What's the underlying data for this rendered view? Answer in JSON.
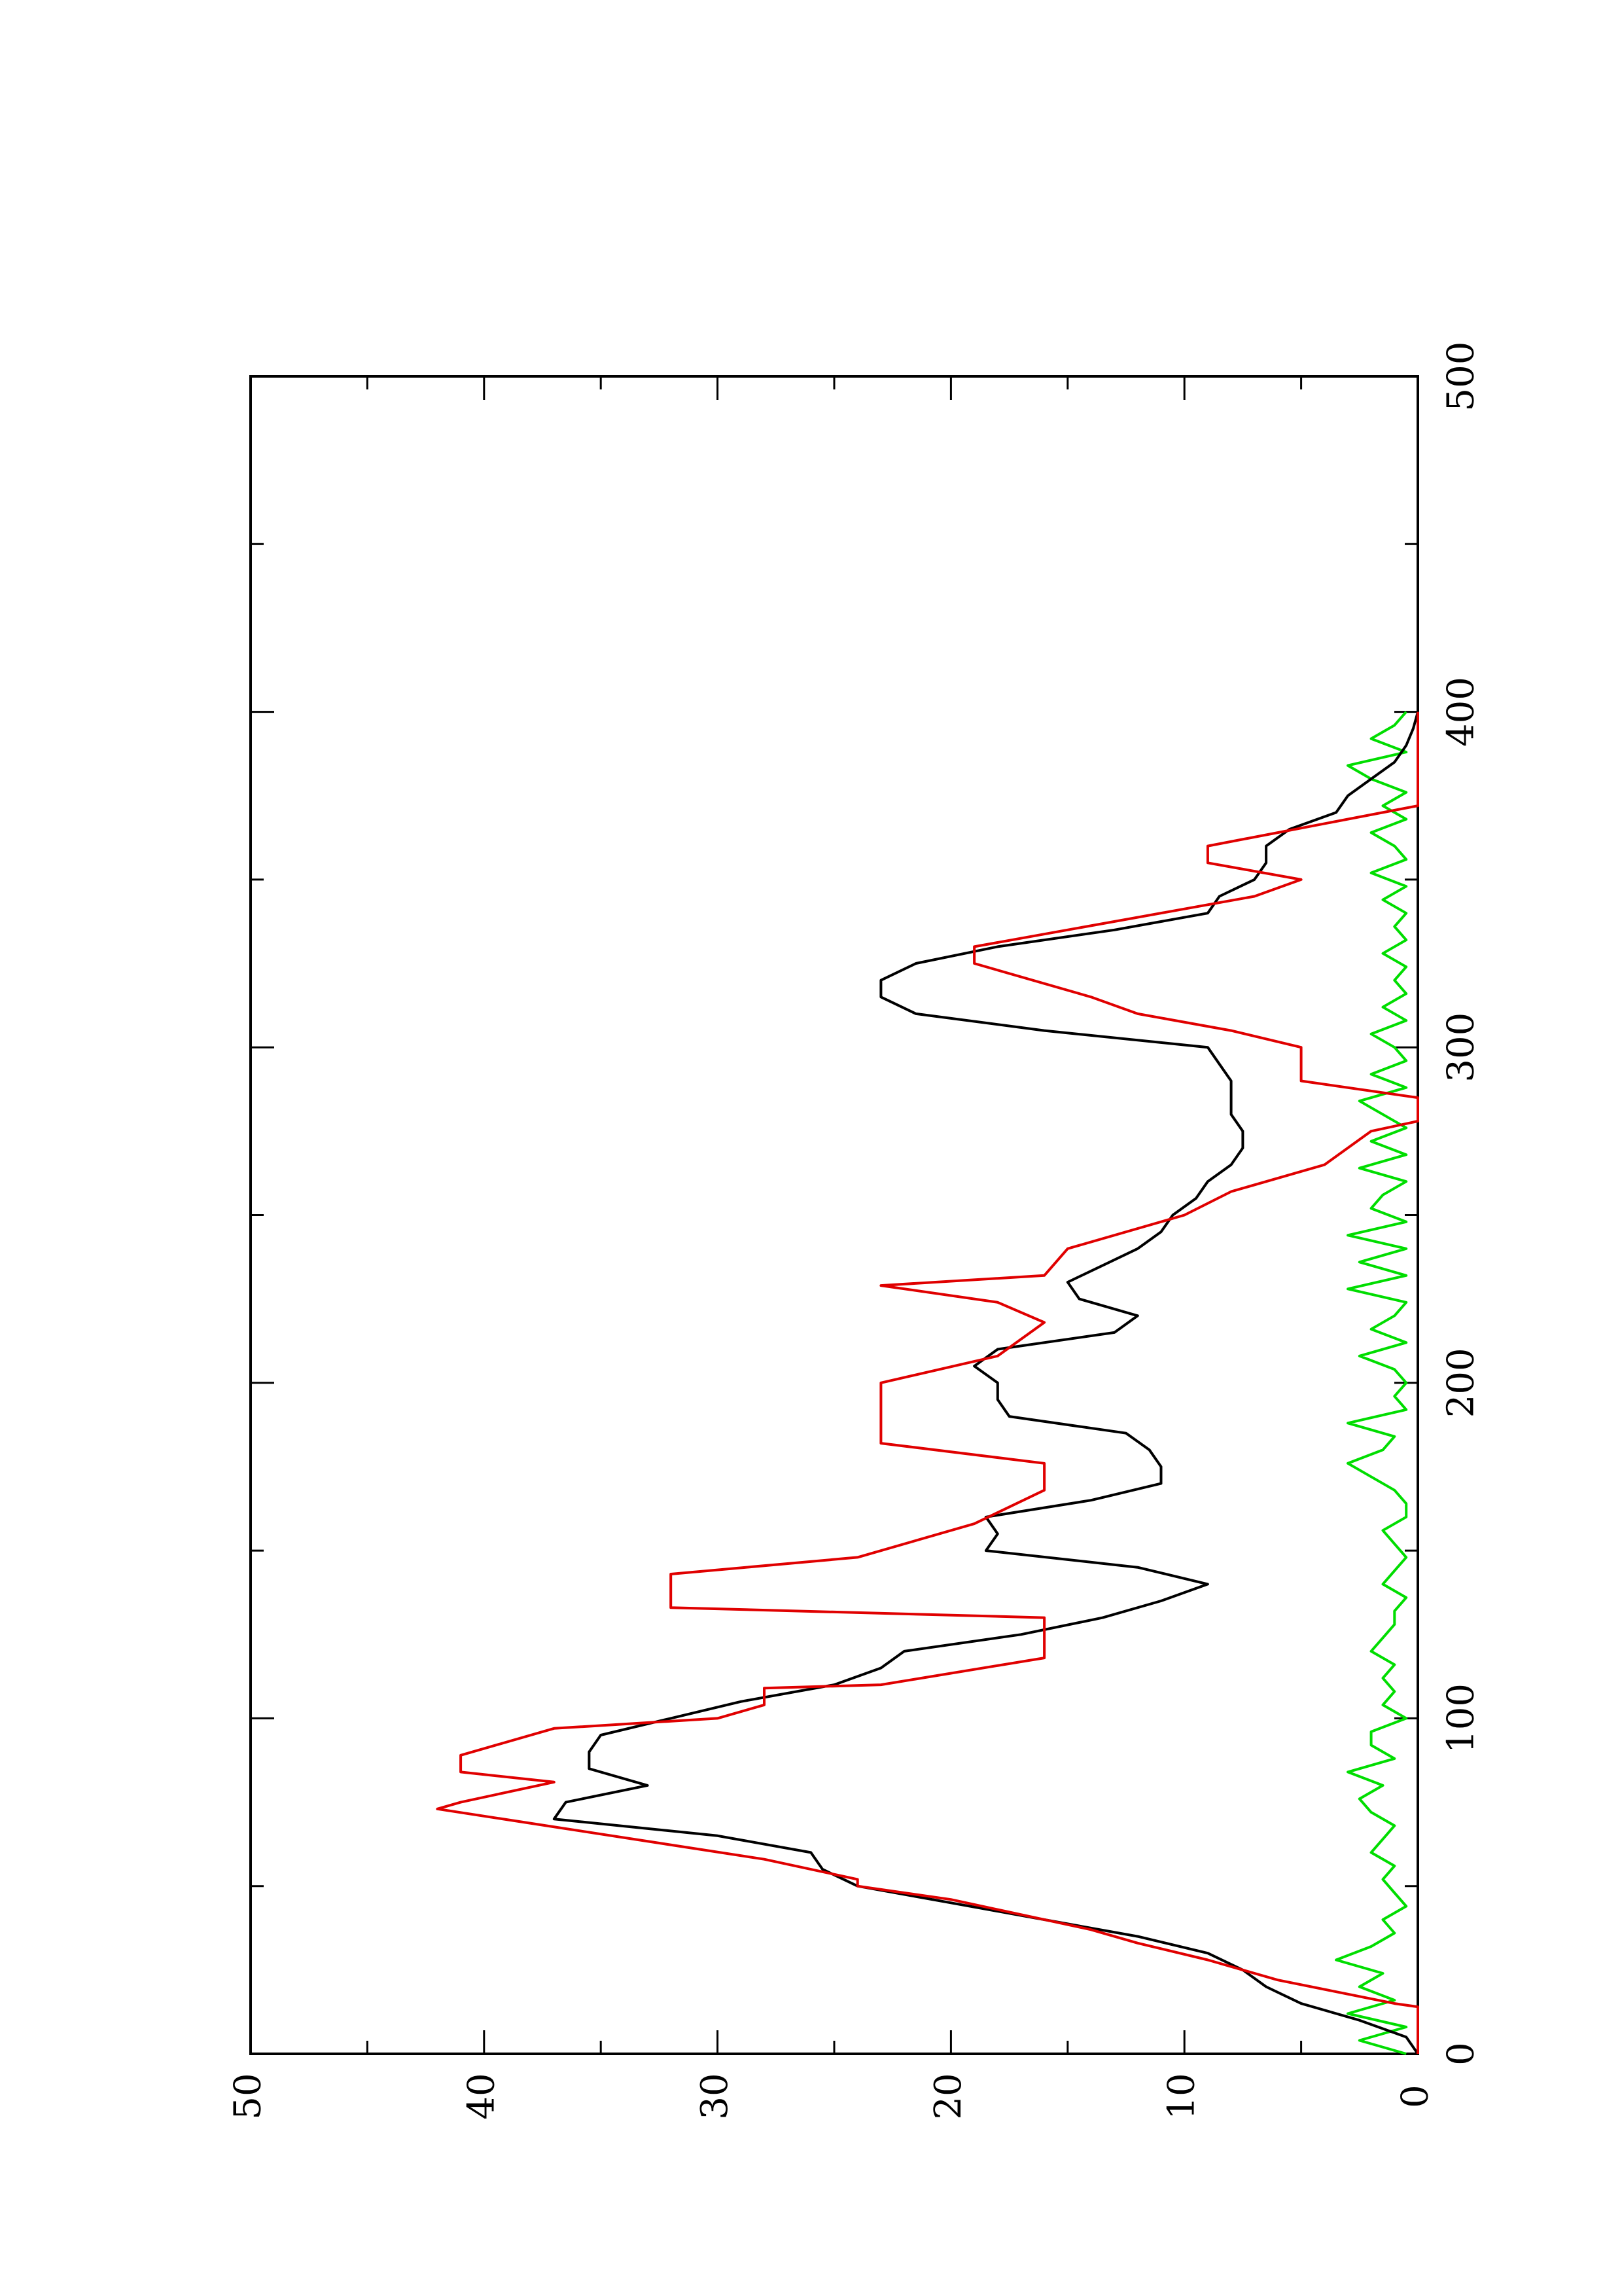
{
  "chart_data": {
    "type": "line",
    "title": "",
    "xlabel": "",
    "ylabel": "",
    "orientation": "rotated-90-ccw",
    "xlim": [
      0,
      500
    ],
    "ylim": [
      0,
      50
    ],
    "x_ticks": [
      "0",
      "100",
      "200",
      "300",
      "400",
      "500"
    ],
    "y_ticks": [
      "0",
      "10",
      "20",
      "30",
      "40",
      "50"
    ],
    "grid": false,
    "series": [
      {
        "color": "#000000",
        "x": [
          0,
          5,
          10,
          15,
          20,
          25,
          30,
          35,
          40,
          45,
          50,
          55,
          60,
          65,
          70,
          75,
          80,
          85,
          90,
          95,
          100,
          105,
          110,
          115,
          120,
          125,
          130,
          135,
          140,
          145,
          150,
          155,
          160,
          165,
          170,
          175,
          180,
          185,
          190,
          195,
          200,
          205,
          210,
          215,
          220,
          225,
          230,
          235,
          240,
          245,
          250,
          255,
          260,
          265,
          270,
          275,
          280,
          285,
          290,
          295,
          300,
          305,
          310,
          315,
          320,
          325,
          330,
          335,
          340,
          345,
          350,
          355,
          360,
          365,
          370,
          375,
          380,
          385,
          390,
          395,
          400
        ],
        "values": [
          0,
          0.5,
          2.5,
          5,
          6.5,
          7.5,
          9,
          12,
          16,
          20,
          24,
          25.5,
          26,
          30,
          37,
          36.5,
          33,
          35.5,
          35.5,
          35,
          32,
          29,
          25,
          23,
          22,
          17,
          13.5,
          11,
          9,
          12,
          18.5,
          18,
          18.5,
          14,
          11,
          11,
          11.5,
          12.5,
          17.5,
          18,
          18,
          19,
          18,
          13,
          12,
          14.5,
          15,
          13.5,
          12,
          11,
          10.5,
          9.5,
          9,
          8,
          7.5,
          7.5,
          8,
          8,
          8,
          8.5,
          9,
          16,
          21.5,
          23,
          23,
          21.5,
          18,
          13,
          9,
          8.5,
          7,
          6.5,
          6.5,
          5.5,
          3.5,
          3,
          2,
          1,
          0.5,
          0.2,
          0
        ]
      },
      {
        "color": "#e00000",
        "x": [
          0,
          14,
          15,
          22,
          28,
          33,
          37,
          43,
          46,
          48,
          50,
          52,
          58,
          73,
          75,
          81,
          84,
          89,
          97,
          100,
          104,
          109,
          110,
          118,
          130,
          133,
          143,
          148,
          158,
          168,
          176,
          182,
          188,
          200,
          208,
          218,
          224,
          229,
          232,
          240,
          250,
          257,
          265,
          275,
          278,
          285,
          290,
          298,
          300,
          305,
          310,
          315,
          325,
          330,
          345,
          350,
          355,
          360,
          372,
          400
        ],
        "values": [
          0,
          0,
          1,
          6,
          9,
          12,
          14,
          18,
          20,
          22,
          24,
          24,
          28,
          42,
          41,
          37,
          41,
          41,
          37,
          30,
          28,
          28,
          23,
          16,
          16,
          32,
          32,
          24,
          19,
          16,
          16,
          23,
          23,
          23,
          18,
          16,
          18,
          23,
          16,
          15,
          10,
          8,
          4,
          2,
          0,
          0,
          5,
          5,
          5,
          8,
          12,
          14,
          19,
          19,
          7,
          5,
          9,
          9,
          0,
          0
        ]
      },
      {
        "color": "#00dd00",
        "x": [
          0,
          4,
          8,
          12,
          16,
          20,
          24,
          28,
          32,
          36,
          40,
          44,
          48,
          52,
          56,
          60,
          64,
          68,
          72,
          76,
          80,
          84,
          88,
          92,
          96,
          100,
          104,
          108,
          112,
          116,
          120,
          124,
          128,
          132,
          136,
          140,
          144,
          148,
          152,
          156,
          160,
          164,
          168,
          172,
          176,
          180,
          184,
          188,
          192,
          196,
          200,
          204,
          208,
          212,
          216,
          220,
          224,
          228,
          232,
          236,
          240,
          244,
          248,
          252,
          256,
          260,
          264,
          268,
          272,
          276,
          280,
          284,
          288,
          292,
          296,
          300,
          304,
          308,
          312,
          316,
          320,
          324,
          328,
          332,
          336,
          340,
          344,
          348,
          352,
          356,
          360,
          364,
          368,
          372,
          376,
          380,
          384,
          388,
          392,
          396,
          400
        ],
        "values": [
          0.5,
          2.5,
          0.5,
          3,
          1,
          2.5,
          1.5,
          3.5,
          2,
          1,
          1.5,
          0.5,
          1,
          1.5,
          1,
          2,
          1.5,
          1,
          2,
          2.5,
          1.5,
          3,
          1,
          2,
          2,
          0.5,
          1.5,
          1,
          1.5,
          1,
          2,
          1.5,
          1,
          1,
          0.5,
          1.5,
          1,
          0.5,
          1,
          1.5,
          0.5,
          0.5,
          1,
          2,
          3,
          1.5,
          1,
          3,
          0.5,
          1,
          0.5,
          1,
          2.5,
          0.5,
          2,
          1,
          0.5,
          3,
          0.5,
          2.5,
          0.5,
          3,
          0.5,
          2,
          1.5,
          0.5,
          2.5,
          0.5,
          2,
          0.5,
          1.5,
          2.5,
          0.5,
          2,
          0.5,
          1,
          2,
          0.5,
          1.5,
          0.5,
          1,
          0.5,
          1.5,
          0.5,
          1,
          0.5,
          1.5,
          0.5,
          2,
          0.5,
          1,
          2,
          0.5,
          1.5,
          0.5,
          2,
          3,
          0.5,
          2,
          1,
          0.5
        ]
      }
    ]
  }
}
